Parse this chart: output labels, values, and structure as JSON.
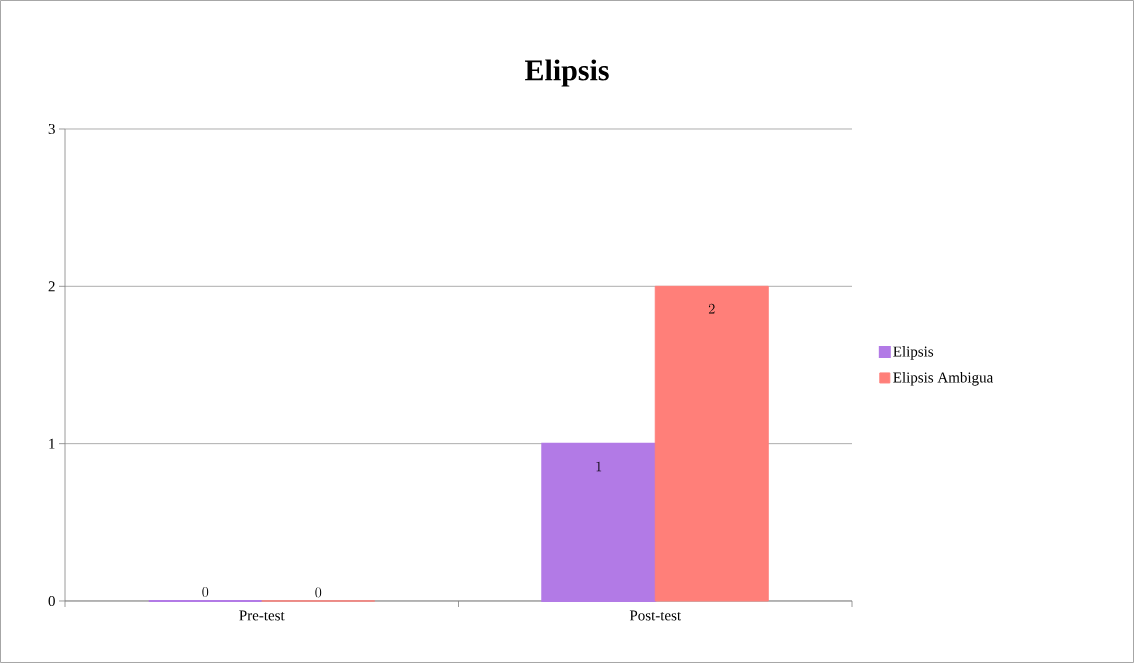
{
  "chart_data": {
    "type": "bar",
    "title": "Elipsis",
    "categories": [
      "Pre-test",
      "Post-test"
    ],
    "series": [
      {
        "name": "Elipsis",
        "color": "#b27ae6",
        "values": [
          0,
          1
        ]
      },
      {
        "name": "Elipsis Ambigua",
        "color": "#ff7f79",
        "values": [
          0,
          2
        ]
      }
    ],
    "ylim": [
      0,
      3
    ],
    "yticks": [
      0,
      1,
      2,
      3
    ],
    "grid": "y",
    "legend": "right",
    "data_labels": true
  }
}
